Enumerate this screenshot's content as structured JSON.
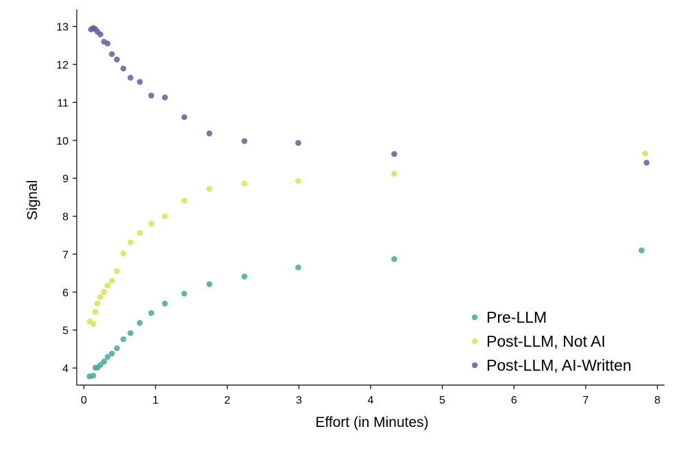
{
  "chart_data": {
    "type": "scatter",
    "xlabel": "Effort (in Minutes)",
    "ylabel": "Signal",
    "xlim": [
      -0.1,
      8.1
    ],
    "ylim": [
      3.55,
      13.3
    ],
    "xticks": [
      0,
      1,
      2,
      3,
      4,
      5,
      6,
      7,
      8
    ],
    "yticks": [
      4,
      5,
      6,
      7,
      8,
      9,
      10,
      11,
      12,
      13
    ],
    "grid": false,
    "legend_position": "bottom-right",
    "series": [
      {
        "name": "Pre-LLM",
        "color": "#44aa99",
        "points": [
          [
            0.08,
            3.78
          ],
          [
            0.13,
            3.8
          ],
          [
            0.16,
            4.01
          ],
          [
            0.19,
            4.01
          ],
          [
            0.23,
            4.08
          ],
          [
            0.28,
            4.17
          ],
          [
            0.33,
            4.29
          ],
          [
            0.39,
            4.38
          ],
          [
            0.46,
            4.52
          ],
          [
            0.55,
            4.76
          ],
          [
            0.65,
            4.92
          ],
          [
            0.78,
            5.19
          ],
          [
            0.94,
            5.45
          ],
          [
            1.13,
            5.7
          ],
          [
            1.4,
            5.96
          ],
          [
            1.75,
            6.21
          ],
          [
            2.24,
            6.41
          ],
          [
            2.99,
            6.65
          ],
          [
            4.33,
            6.87
          ],
          [
            7.78,
            7.1
          ]
        ]
      },
      {
        "name": "Post-LLM, Not AI",
        "color": "#d2e64a",
        "points": [
          [
            0.08,
            5.23
          ],
          [
            0.13,
            5.16
          ],
          [
            0.16,
            5.48
          ],
          [
            0.19,
            5.7
          ],
          [
            0.23,
            5.87
          ],
          [
            0.28,
            6.01
          ],
          [
            0.33,
            6.17
          ],
          [
            0.39,
            6.3
          ],
          [
            0.46,
            6.55
          ],
          [
            0.55,
            7.02
          ],
          [
            0.65,
            7.31
          ],
          [
            0.78,
            7.56
          ],
          [
            0.94,
            7.8
          ],
          [
            1.13,
            8.0
          ],
          [
            1.4,
            8.41
          ],
          [
            1.75,
            8.72
          ],
          [
            2.24,
            8.86
          ],
          [
            2.99,
            8.93
          ],
          [
            4.33,
            9.12
          ],
          [
            7.83,
            9.65
          ]
        ]
      },
      {
        "name": "Post-LLM, AI-Written",
        "color": "#6a5a9e",
        "points": [
          [
            0.1,
            12.92
          ],
          [
            0.13,
            12.96
          ],
          [
            0.16,
            12.93
          ],
          [
            0.19,
            12.86
          ],
          [
            0.23,
            12.79
          ],
          [
            0.28,
            12.6
          ],
          [
            0.33,
            12.55
          ],
          [
            0.39,
            12.27
          ],
          [
            0.46,
            12.13
          ],
          [
            0.55,
            11.89
          ],
          [
            0.65,
            11.65
          ],
          [
            0.78,
            11.54
          ],
          [
            0.94,
            11.18
          ],
          [
            1.13,
            11.13
          ],
          [
            1.4,
            10.61
          ],
          [
            1.75,
            10.18
          ],
          [
            2.24,
            9.98
          ],
          [
            2.99,
            9.93
          ],
          [
            4.33,
            9.64
          ],
          [
            7.85,
            9.41
          ]
        ]
      }
    ]
  }
}
